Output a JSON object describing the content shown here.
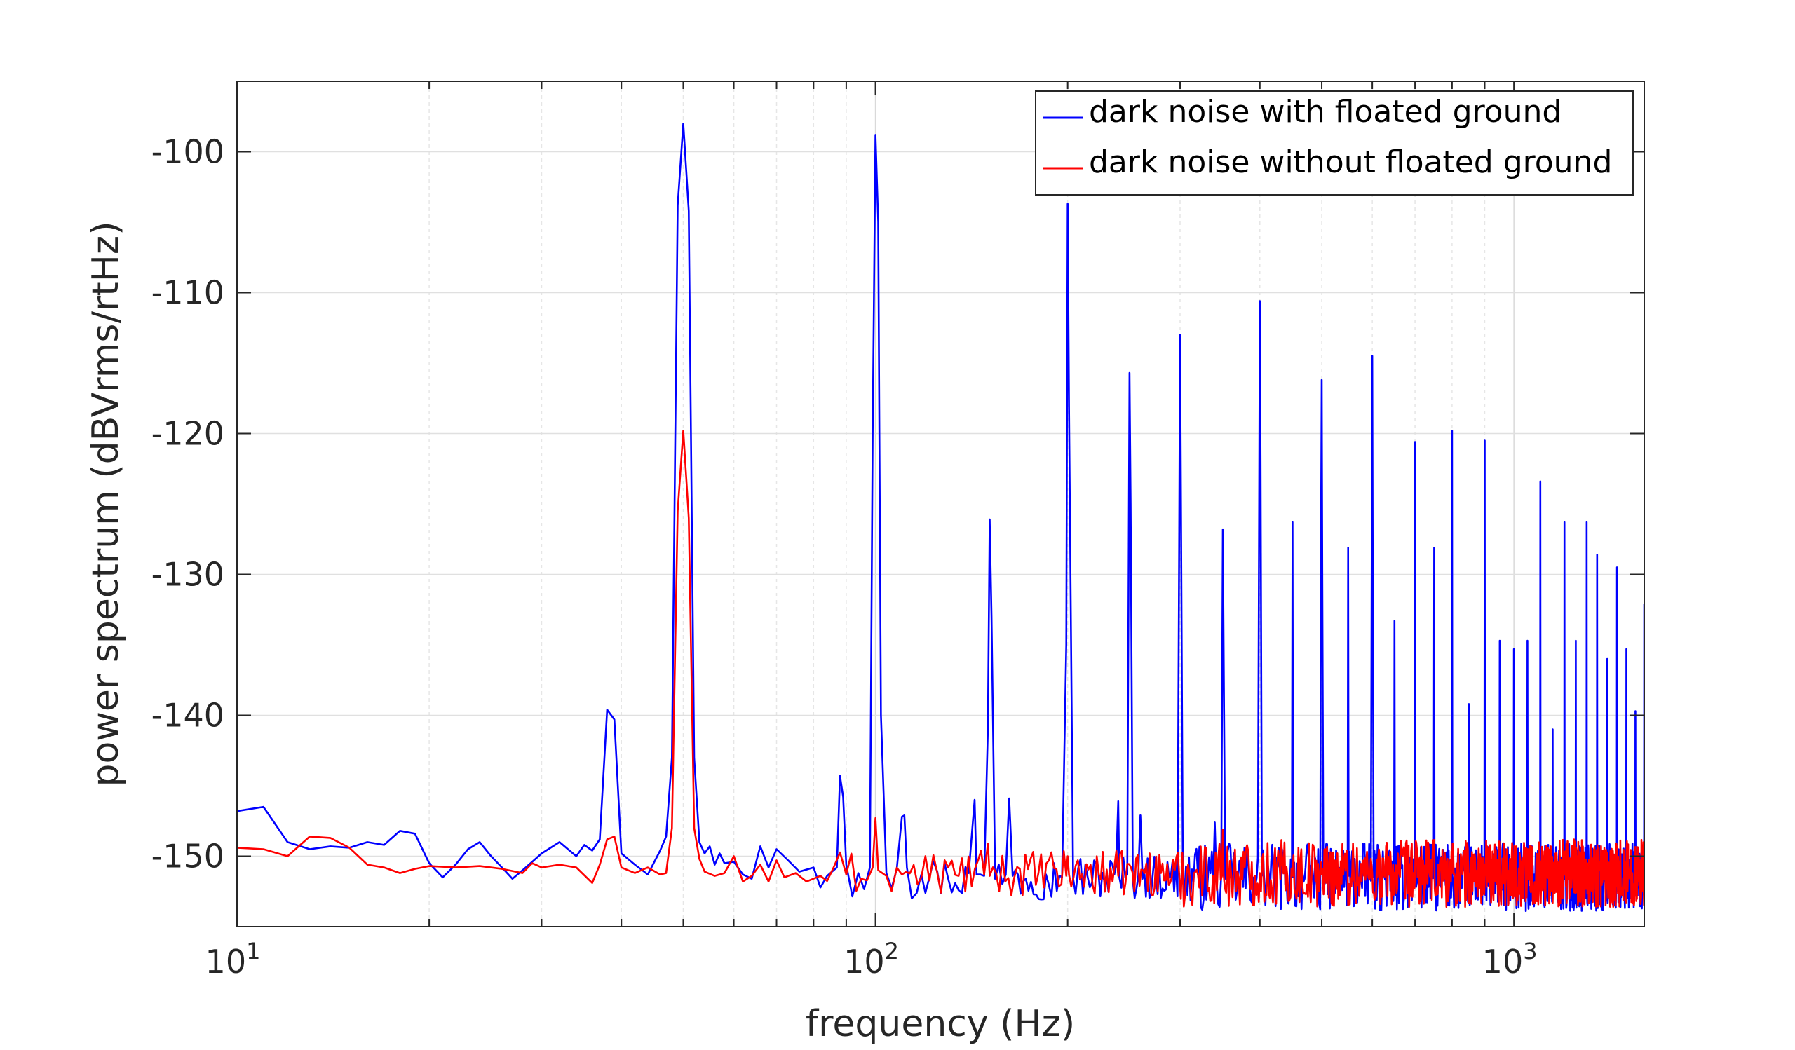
{
  "chart_data": {
    "type": "line",
    "title": "",
    "xlabel": "frequency (Hz)",
    "ylabel": "power spectrum (dBVrms/rtHz)",
    "x_scale": "log",
    "xlim": [
      10,
      1600
    ],
    "ylim": [
      -155,
      -95
    ],
    "grid": true,
    "legend_position": "top-right",
    "x_ticks": [
      {
        "base": "10",
        "exp": "1",
        "value": 10
      },
      {
        "base": "10",
        "exp": "2",
        "value": 100
      },
      {
        "base": "10",
        "exp": "3",
        "value": 1000
      }
    ],
    "y_ticks": [
      {
        "label": "-100",
        "value": -100
      },
      {
        "label": "-110",
        "value": -110
      },
      {
        "label": "-120",
        "value": -120
      },
      {
        "label": "-130",
        "value": -130
      },
      {
        "label": "-140",
        "value": -140
      },
      {
        "label": "-150",
        "value": -150
      }
    ],
    "series": [
      {
        "name": "dark noise with floated ground",
        "color": "#0000FF",
        "noise_floor": -151.5,
        "points": [
          [
            10,
            -146.8
          ],
          [
            11,
            -146.5
          ],
          [
            12,
            -149
          ],
          [
            13,
            -149.5
          ],
          [
            14,
            -149.3
          ],
          [
            15,
            -149.4
          ],
          [
            16,
            -149
          ],
          [
            17,
            -149.2
          ],
          [
            18,
            -148.2
          ],
          [
            19,
            -148.4
          ],
          [
            20,
            -150.5
          ],
          [
            21,
            -151.5
          ],
          [
            22,
            -150.6
          ],
          [
            23,
            -149.5
          ],
          [
            24,
            -149
          ],
          [
            25,
            -150
          ],
          [
            26,
            -150.8
          ],
          [
            27,
            -151.6
          ],
          [
            28,
            -151
          ],
          [
            29,
            -150.4
          ],
          [
            30,
            -149.8
          ],
          [
            32,
            -149
          ],
          [
            34,
            -150
          ],
          [
            35,
            -149.2
          ],
          [
            36,
            -149.6
          ],
          [
            37,
            -148.8
          ],
          [
            38,
            -139.6
          ],
          [
            39,
            -140.3
          ],
          [
            40,
            -149.8
          ],
          [
            42,
            -150.6
          ],
          [
            44,
            -151.3
          ],
          [
            46,
            -149.6
          ],
          [
            47,
            -148.6
          ],
          [
            48,
            -143
          ],
          [
            49,
            -103.8
          ],
          [
            50,
            -98
          ],
          [
            51,
            -104.2
          ],
          [
            52,
            -143
          ],
          [
            53,
            -149
          ],
          [
            54,
            -149.8
          ],
          [
            55,
            -149.3
          ],
          [
            56,
            -150.6
          ],
          [
            57,
            -149.8
          ],
          [
            58,
            -150.5
          ],
          [
            60,
            -150.4
          ],
          [
            62,
            -151.3
          ],
          [
            64,
            -151.6
          ],
          [
            66,
            -149.3
          ],
          [
            68,
            -150.8
          ],
          [
            70,
            -149.5
          ],
          [
            73,
            -150.3
          ],
          [
            76,
            -151.1
          ],
          [
            80,
            -150.8
          ],
          [
            84,
            -151.4
          ],
          [
            87,
            -150.8
          ],
          [
            88,
            -144.3
          ],
          [
            89,
            -145.8
          ],
          [
            90,
            -150.6
          ],
          [
            94,
            -151.2
          ],
          [
            98,
            -150.8
          ],
          [
            99,
            -120
          ],
          [
            100,
            -98.8
          ],
          [
            101,
            -105
          ],
          [
            102,
            -140
          ],
          [
            104,
            -151.2
          ],
          [
            108,
            -150.9
          ],
          [
            110,
            -147.2
          ],
          [
            111,
            -147.1
          ],
          [
            112,
            -150.8
          ],
          [
            118,
            -151.3
          ],
          [
            125,
            -151.1
          ],
          [
            130,
            -151.6
          ],
          [
            140,
            -151.2
          ],
          [
            143,
            -146
          ],
          [
            144,
            -151.3
          ],
          [
            148,
            -151.4
          ],
          [
            150,
            -141
          ],
          [
            151,
            -126.1
          ],
          [
            152,
            -133
          ],
          [
            154,
            -151.6
          ],
          [
            160,
            -151.3
          ],
          [
            162,
            -145.9
          ],
          [
            164,
            -151.4
          ],
          [
            172,
            -151.6
          ],
          [
            185,
            -151.3
          ],
          [
            196,
            -151.5
          ],
          [
            199,
            -135
          ],
          [
            200,
            -103.7
          ],
          [
            201,
            -118
          ],
          [
            204,
            -151.6
          ],
          [
            215,
            -151.5
          ],
          [
            230,
            -151.4
          ],
          [
            240,
            -146.1
          ],
          [
            241,
            -151.5
          ],
          [
            248,
            -151.3
          ],
          [
            250,
            -115.7
          ],
          [
            251,
            -125
          ],
          [
            253,
            -151.7
          ],
          [
            258,
            -151.4
          ],
          [
            260,
            -147.1
          ],
          [
            262,
            -151.6
          ],
          [
            275,
            -151.4
          ],
          [
            290,
            -151.5
          ],
          [
            299,
            -128
          ],
          [
            300,
            -113
          ],
          [
            301,
            -125
          ],
          [
            303,
            -151.6
          ],
          [
            320,
            -151.3
          ],
          [
            338,
            -151.8
          ],
          [
            340,
            -147.6
          ],
          [
            342,
            -151.5
          ],
          [
            348,
            -151.4
          ],
          [
            350,
            -126.8
          ],
          [
            351,
            -135
          ],
          [
            353,
            -151.6
          ],
          [
            370,
            -151.4
          ],
          [
            390,
            -151.5
          ],
          [
            399,
            -125
          ],
          [
            400,
            -110.6
          ],
          [
            401,
            -122
          ],
          [
            403,
            -151.4
          ],
          [
            420,
            -151.6
          ],
          [
            440,
            -151.4
          ],
          [
            449,
            -151.3
          ],
          [
            450,
            -126.3
          ],
          [
            451,
            -151.5
          ],
          [
            470,
            -151.6
          ],
          [
            490,
            -151.4
          ],
          [
            499,
            -125
          ],
          [
            500,
            -116.2
          ],
          [
            501,
            -130
          ],
          [
            503,
            -151.5
          ],
          [
            530,
            -151.4
          ],
          [
            549,
            -151.7
          ],
          [
            550,
            -128.1
          ],
          [
            551,
            -151.4
          ],
          [
            570,
            -151.6
          ],
          [
            595,
            -151.3
          ],
          [
            599,
            -125
          ],
          [
            600,
            -114.5
          ],
          [
            601,
            -130
          ],
          [
            603,
            -151.5
          ],
          [
            630,
            -151.4
          ],
          [
            649,
            -151.6
          ],
          [
            650,
            -133.3
          ],
          [
            651,
            -151.5
          ],
          [
            680,
            -151.4
          ],
          [
            699,
            -151.3
          ],
          [
            700,
            -120.6
          ],
          [
            701,
            -151.5
          ],
          [
            720,
            -151.7
          ],
          [
            745,
            -151.4
          ],
          [
            749,
            -151.3
          ],
          [
            750,
            -128.1
          ],
          [
            751,
            -151.6
          ],
          [
            780,
            -151.4
          ],
          [
            799,
            -151.5
          ],
          [
            800,
            -119.8
          ],
          [
            801,
            -151.4
          ],
          [
            830,
            -151.6
          ],
          [
            849,
            -151.5
          ],
          [
            850,
            -139.2
          ],
          [
            851,
            -151.4
          ],
          [
            880,
            -151.7
          ],
          [
            899,
            -151.4
          ],
          [
            900,
            -120.5
          ],
          [
            901,
            -151.5
          ],
          [
            930,
            -151.6
          ],
          [
            949,
            -151.4
          ],
          [
            950,
            -134.7
          ],
          [
            951,
            -151.6
          ],
          [
            980,
            -151.5
          ],
          [
            999,
            -151.4
          ],
          [
            1000,
            -135.3
          ],
          [
            1001,
            -151.6
          ],
          [
            1030,
            -151.5
          ],
          [
            1049,
            -151.4
          ],
          [
            1050,
            -134.7
          ],
          [
            1051,
            -151.6
          ],
          [
            1080,
            -151.5
          ],
          [
            1099,
            -151.4
          ],
          [
            1100,
            -123.4
          ],
          [
            1101,
            -151.7
          ],
          [
            1130,
            -151.5
          ],
          [
            1149,
            -151.4
          ],
          [
            1150,
            -141
          ],
          [
            1151,
            -151.6
          ],
          [
            1180,
            -151.4
          ],
          [
            1199,
            -151.5
          ],
          [
            1200,
            -126.3
          ],
          [
            1201,
            -151.6
          ],
          [
            1230,
            -151.4
          ],
          [
            1249,
            -151.5
          ],
          [
            1250,
            -134.7
          ],
          [
            1251,
            -151.6
          ],
          [
            1280,
            -151.4
          ],
          [
            1299,
            -151.5
          ],
          [
            1300,
            -126.3
          ],
          [
            1301,
            -151.6
          ],
          [
            1330,
            -151.4
          ],
          [
            1349,
            -151.5
          ],
          [
            1350,
            -128.6
          ],
          [
            1351,
            -151.7
          ],
          [
            1380,
            -151.4
          ],
          [
            1399,
            -151.5
          ],
          [
            1400,
            -136
          ],
          [
            1401,
            -151.6
          ],
          [
            1430,
            -151.4
          ],
          [
            1449,
            -151.5
          ],
          [
            1450,
            -129.5
          ],
          [
            1451,
            -151.6
          ],
          [
            1480,
            -151.4
          ],
          [
            1499,
            -151.5
          ],
          [
            1500,
            -135.3
          ],
          [
            1501,
            -151.6
          ],
          [
            1530,
            -151.4
          ],
          [
            1549,
            -151.5
          ],
          [
            1550,
            -139.7
          ],
          [
            1551,
            -151.6
          ],
          [
            1575,
            -151.4
          ],
          [
            1599,
            -151.5
          ],
          [
            1600,
            -132.1
          ]
        ]
      },
      {
        "name": "dark noise without floated ground",
        "color": "#FF0000",
        "noise_floor": -151.2,
        "points": [
          [
            10,
            -149.4
          ],
          [
            11,
            -149.5
          ],
          [
            12,
            -150
          ],
          [
            13,
            -148.6
          ],
          [
            14,
            -148.7
          ],
          [
            15,
            -149.4
          ],
          [
            16,
            -150.6
          ],
          [
            17,
            -150.8
          ],
          [
            18,
            -151.2
          ],
          [
            19,
            -150.9
          ],
          [
            20,
            -150.7
          ],
          [
            22,
            -150.8
          ],
          [
            24,
            -150.7
          ],
          [
            26,
            -150.9
          ],
          [
            28,
            -151.2
          ],
          [
            29,
            -150.5
          ],
          [
            30,
            -150.8
          ],
          [
            32,
            -150.6
          ],
          [
            34,
            -150.8
          ],
          [
            36,
            -151.9
          ],
          [
            37,
            -150.6
          ],
          [
            38,
            -148.8
          ],
          [
            39,
            -148.6
          ],
          [
            40,
            -150.8
          ],
          [
            42,
            -151.2
          ],
          [
            44,
            -150.8
          ],
          [
            46,
            -151.3
          ],
          [
            47,
            -151.2
          ],
          [
            48,
            -148
          ],
          [
            49,
            -125.5
          ],
          [
            50,
            -119.8
          ],
          [
            51,
            -126
          ],
          [
            52,
            -148
          ],
          [
            53,
            -150.2
          ],
          [
            54,
            -151.1
          ],
          [
            56,
            -151.4
          ],
          [
            58,
            -151.2
          ],
          [
            60,
            -150
          ],
          [
            62,
            -151.8
          ],
          [
            64,
            -151.4
          ],
          [
            66,
            -150.6
          ],
          [
            68,
            -151.8
          ],
          [
            70,
            -150.3
          ],
          [
            72,
            -151.5
          ],
          [
            75,
            -151.2
          ],
          [
            78,
            -151.8
          ],
          [
            82,
            -151.4
          ],
          [
            86,
            -150.8
          ],
          [
            90,
            -151.3
          ],
          [
            95,
            -151.6
          ],
          [
            99,
            -150.8
          ],
          [
            100,
            -147.3
          ],
          [
            101,
            -151
          ],
          [
            104,
            -151.4
          ],
          [
            110,
            -151.3
          ],
          [
            118,
            -151.5
          ],
          [
            125,
            -151.2
          ],
          [
            135,
            -151.4
          ],
          [
            148,
            -151.3
          ],
          [
            150,
            -149.1
          ],
          [
            151,
            -151.4
          ],
          [
            165,
            -151.5
          ],
          [
            180,
            -151.2
          ],
          [
            199,
            -151.4
          ],
          [
            200,
            -150
          ],
          [
            201,
            -151.3
          ],
          [
            240,
            -151.4
          ],
          [
            280,
            -151.2
          ],
          [
            320,
            -151.3
          ],
          [
            349,
            -151.4
          ],
          [
            350,
            -148.1
          ],
          [
            351,
            -151.3
          ],
          [
            400,
            -151.2
          ],
          [
            450,
            -151.4
          ],
          [
            500,
            -151.3
          ],
          [
            600,
            -151.2
          ],
          [
            700,
            -151.4
          ],
          [
            800,
            -151.2
          ],
          [
            900,
            -151.3
          ],
          [
            1000,
            -151.2
          ],
          [
            1100,
            -151.3
          ],
          [
            1200,
            -151.2
          ],
          [
            1300,
            -151.4
          ],
          [
            1400,
            -151.3
          ],
          [
            1500,
            -151.2
          ],
          [
            1600,
            -151.4
          ]
        ]
      }
    ]
  }
}
